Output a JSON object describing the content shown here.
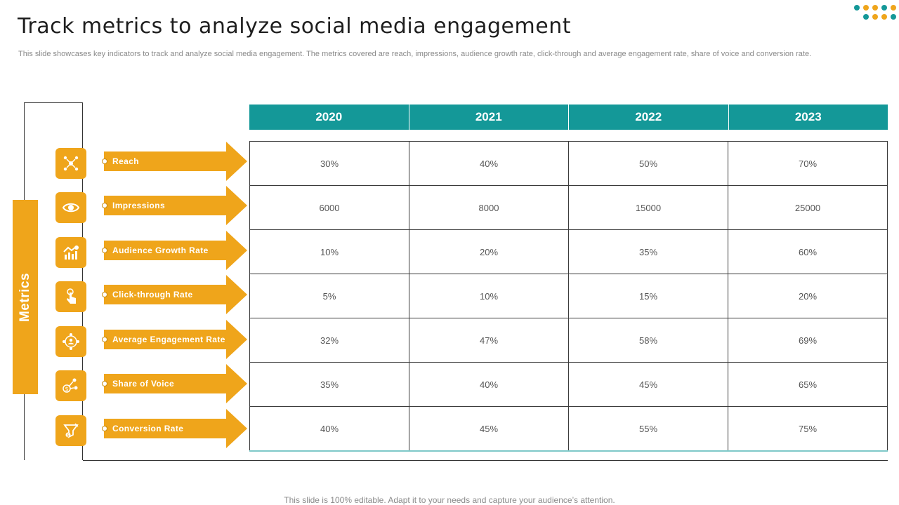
{
  "title": "Track metrics to analyze social media engagement",
  "subtitle": "This slide showcases key indicators to track and analyze social media engagement. The metrics covered are reach, impressions, audience growth rate, click-through and average engagement rate, share of voice and conversion rate.",
  "footer": "This slide is 100% editable. Adapt it to your needs and capture your audience’s attention.",
  "side_label": "Metrics",
  "colors": {
    "accent": "#efa51b",
    "header": "#149898",
    "dot_teal": "#149898",
    "dot_orange": "#efa51b"
  },
  "years": [
    "2020",
    "2021",
    "2022",
    "2023"
  ],
  "metrics": [
    {
      "label": "Reach",
      "icon": "network-icon",
      "values": [
        "30%",
        "40%",
        "50%",
        "70%"
      ]
    },
    {
      "label": "Impressions",
      "icon": "eye-icon",
      "values": [
        "6000",
        "8000",
        "15000",
        "25000"
      ]
    },
    {
      "label": "Audience  Growth Rate",
      "icon": "growth-chart-icon",
      "values": [
        "10%",
        "20%",
        "35%",
        "60%"
      ]
    },
    {
      "label": "Click-through  Rate",
      "icon": "hand-click-icon",
      "values": [
        "5%",
        "10%",
        "15%",
        "20%"
      ]
    },
    {
      "label": "Average Engagement  Rate",
      "icon": "engagement-people-icon",
      "values": [
        "32%",
        "47%",
        "58%",
        "69%"
      ]
    },
    {
      "label": "Share of Voice",
      "icon": "share-voice-icon",
      "values": [
        "35%",
        "40%",
        "45%",
        "65%"
      ]
    },
    {
      "label": "Conversion Rate",
      "icon": "conversion-funnel-icon",
      "values": [
        "40%",
        "45%",
        "55%",
        "75%"
      ]
    }
  ]
}
